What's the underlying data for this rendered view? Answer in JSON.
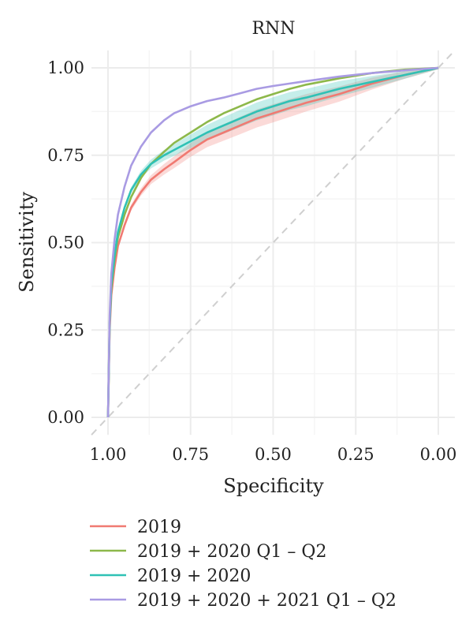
{
  "chart_data": {
    "type": "line",
    "title": "RNN",
    "xlabel": "Specificity",
    "ylabel": "Sensitivity",
    "x_reversed": true,
    "xlim": [
      1.0,
      0.0
    ],
    "ylim": [
      0.0,
      1.0
    ],
    "x_ticks": [
      "1.00",
      "0.75",
      "0.50",
      "0.25",
      "0.00"
    ],
    "y_ticks": [
      "0.00",
      "0.25",
      "0.50",
      "0.75",
      "1.00"
    ],
    "grid": true,
    "diagonal_reference": true,
    "legend_position": "bottom",
    "series": [
      {
        "name": "2019",
        "color": "#F07A72",
        "ribbon": true,
        "x": [
          1.0,
          0.995,
          0.99,
          0.98,
          0.97,
          0.95,
          0.93,
          0.9,
          0.87,
          0.83,
          0.8,
          0.75,
          0.7,
          0.65,
          0.6,
          0.55,
          0.5,
          0.45,
          0.4,
          0.3,
          0.2,
          0.1,
          0.0
        ],
        "y": [
          0.0,
          0.25,
          0.35,
          0.43,
          0.49,
          0.55,
          0.6,
          0.645,
          0.68,
          0.71,
          0.73,
          0.765,
          0.795,
          0.815,
          0.835,
          0.855,
          0.87,
          0.885,
          0.9,
          0.925,
          0.955,
          0.98,
          1.0
        ]
      },
      {
        "name": "2019 + 2020 Q1 – Q2",
        "color": "#8DB84A",
        "ribbon": false,
        "x": [
          1.0,
          0.995,
          0.99,
          0.98,
          0.97,
          0.95,
          0.93,
          0.9,
          0.87,
          0.83,
          0.8,
          0.75,
          0.7,
          0.65,
          0.6,
          0.55,
          0.5,
          0.45,
          0.4,
          0.3,
          0.2,
          0.1,
          0.0
        ],
        "y": [
          0.0,
          0.27,
          0.37,
          0.455,
          0.515,
          0.58,
          0.63,
          0.685,
          0.725,
          0.76,
          0.785,
          0.815,
          0.845,
          0.87,
          0.89,
          0.91,
          0.925,
          0.94,
          0.952,
          0.97,
          0.985,
          0.995,
          1.0
        ]
      },
      {
        "name": "2019 + 2020",
        "color": "#2FC1B5",
        "ribbon": true,
        "x": [
          1.0,
          0.995,
          0.99,
          0.98,
          0.97,
          0.95,
          0.93,
          0.9,
          0.87,
          0.83,
          0.8,
          0.75,
          0.7,
          0.65,
          0.6,
          0.55,
          0.5,
          0.45,
          0.4,
          0.3,
          0.2,
          0.1,
          0.0
        ],
        "y": [
          0.0,
          0.27,
          0.38,
          0.465,
          0.53,
          0.6,
          0.65,
          0.695,
          0.725,
          0.75,
          0.765,
          0.79,
          0.815,
          0.835,
          0.855,
          0.875,
          0.89,
          0.905,
          0.915,
          0.94,
          0.96,
          0.98,
          1.0
        ]
      },
      {
        "name": "2019 + 2020 + 2021 Q1 – Q2",
        "color": "#A99BE3",
        "ribbon": false,
        "x": [
          1.0,
          0.995,
          0.99,
          0.98,
          0.97,
          0.95,
          0.93,
          0.9,
          0.87,
          0.83,
          0.8,
          0.75,
          0.7,
          0.65,
          0.6,
          0.55,
          0.5,
          0.45,
          0.4,
          0.3,
          0.2,
          0.1,
          0.0
        ],
        "y": [
          0.0,
          0.29,
          0.41,
          0.51,
          0.58,
          0.66,
          0.72,
          0.775,
          0.815,
          0.85,
          0.87,
          0.89,
          0.905,
          0.915,
          0.927,
          0.94,
          0.948,
          0.955,
          0.962,
          0.975,
          0.985,
          0.993,
          1.0
        ]
      }
    ]
  }
}
